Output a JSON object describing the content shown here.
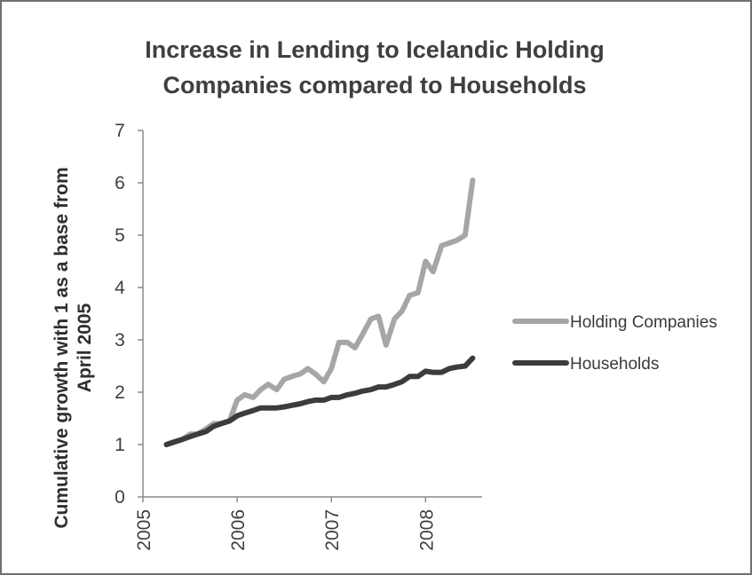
{
  "chart_data": {
    "type": "line",
    "title_lines": [
      "Increase in Lending to Icelandic Holding",
      "Companies compared to Households"
    ],
    "ylabel_lines": [
      "Cumulative growth with 1 as a base from",
      "April 2005"
    ],
    "xlabel": "",
    "ylim": [
      0,
      7
    ],
    "yticks": [
      0,
      1,
      2,
      3,
      4,
      5,
      6,
      7
    ],
    "xlim": [
      2005.25,
      2008.6
    ],
    "xticks": [
      2005,
      2006,
      2007,
      2008
    ],
    "grid": false,
    "legend_position": "right",
    "x": [
      2005.25,
      2005.33,
      2005.42,
      2005.5,
      2005.58,
      2005.67,
      2005.75,
      2005.83,
      2005.92,
      2006.0,
      2006.08,
      2006.17,
      2006.25,
      2006.33,
      2006.42,
      2006.5,
      2006.58,
      2006.67,
      2006.75,
      2006.83,
      2006.92,
      2007.0,
      2007.08,
      2007.17,
      2007.25,
      2007.33,
      2007.42,
      2007.5,
      2007.58,
      2007.67,
      2007.75,
      2007.83,
      2007.92,
      2008.0,
      2008.08,
      2008.17,
      2008.25,
      2008.33,
      2008.42,
      2008.5
    ],
    "series": [
      {
        "name": "Holding Companies",
        "color": "#a6a6a6",
        "values": [
          1.0,
          1.05,
          1.1,
          1.2,
          1.2,
          1.3,
          1.4,
          1.4,
          1.45,
          1.85,
          1.95,
          1.9,
          2.05,
          2.15,
          2.05,
          2.25,
          2.3,
          2.35,
          2.45,
          2.35,
          2.2,
          2.45,
          2.95,
          2.95,
          2.85,
          3.1,
          3.4,
          3.45,
          2.9,
          3.4,
          3.55,
          3.85,
          3.9,
          4.5,
          4.3,
          4.8,
          4.85,
          4.9,
          5.0,
          6.05
        ]
      },
      {
        "name": "Households",
        "color": "#3c3c3c",
        "values": [
          1.0,
          1.05,
          1.1,
          1.15,
          1.2,
          1.25,
          1.35,
          1.4,
          1.45,
          1.55,
          1.6,
          1.65,
          1.7,
          1.7,
          1.7,
          1.72,
          1.75,
          1.78,
          1.82,
          1.85,
          1.85,
          1.9,
          1.9,
          1.95,
          1.98,
          2.02,
          2.05,
          2.1,
          2.1,
          2.15,
          2.2,
          2.3,
          2.3,
          2.4,
          2.38,
          2.38,
          2.45,
          2.48,
          2.5,
          2.65
        ]
      }
    ]
  }
}
